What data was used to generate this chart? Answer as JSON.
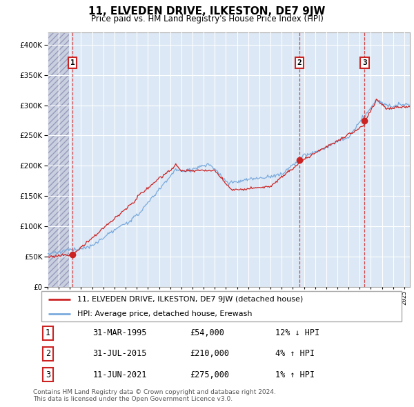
{
  "title": "11, ELVEDEN DRIVE, ILKESTON, DE7 9JW",
  "subtitle": "Price paid vs. HM Land Registry's House Price Index (HPI)",
  "legend_line1": "11, ELVEDEN DRIVE, ILKESTON, DE7 9JW (detached house)",
  "legend_line2": "HPI: Average price, detached house, Erewash",
  "footer": "Contains HM Land Registry data © Crown copyright and database right 2024.\nThis data is licensed under the Open Government Licence v3.0.",
  "hpi_color": "#7aaadd",
  "price_color": "#cc2222",
  "dashed_color": "#cc2222",
  "ylim": [
    0,
    420000
  ],
  "yticks": [
    0,
    50000,
    100000,
    150000,
    200000,
    250000,
    300000,
    350000,
    400000
  ],
  "xlim_start": 1993.0,
  "xlim_end": 2025.5,
  "sale_dates": [
    1995.25,
    2015.58,
    2021.44
  ],
  "sale_prices": [
    54000,
    210000,
    275000
  ],
  "sale_labels": [
    "1",
    "2",
    "3"
  ],
  "table_rows": [
    [
      "1",
      "31-MAR-1995",
      "£54,000",
      "12% ↓ HPI"
    ],
    [
      "2",
      "31-JUL-2015",
      "£210,000",
      "4% ↑ HPI"
    ],
    [
      "3",
      "11-JUN-2021",
      "£275,000",
      "1% ↑ HPI"
    ]
  ]
}
